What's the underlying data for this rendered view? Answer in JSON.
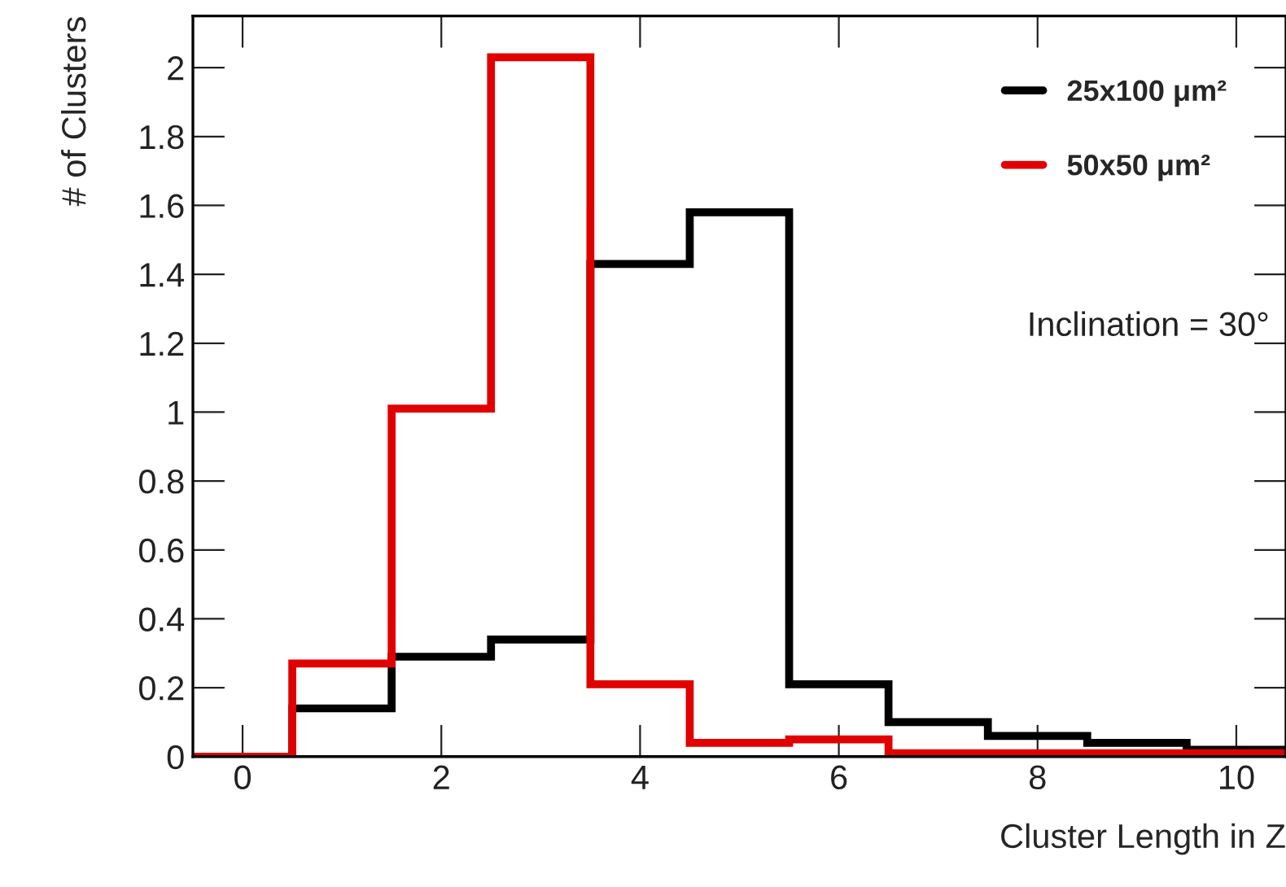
{
  "chart_data": {
    "type": "histogram",
    "xlabel": "Cluster Length in Z",
    "ylabel": "# of Clusters",
    "bins": [
      -0.5,
      0.5,
      1.5,
      2.5,
      3.5,
      4.5,
      5.5,
      6.5,
      7.5,
      8.5,
      9.5,
      10.5
    ],
    "series": [
      {
        "name": "25x100 μm²",
        "color": "#000000",
        "values": [
          0,
          0.14,
          0.29,
          0.34,
          1.43,
          1.58,
          0.21,
          0.1,
          0.06,
          0.04,
          0.02
        ]
      },
      {
        "name": "50x50 μm²",
        "color": "#e00000",
        "values": [
          0,
          0.27,
          1.01,
          2.03,
          0.21,
          0.04,
          0.05,
          0.01,
          0.01,
          0.01,
          0.01
        ]
      }
    ],
    "xlim": [
      -0.5,
      10.5
    ],
    "xticks": [
      0,
      2,
      4,
      6,
      8,
      10
    ],
    "ylim": [
      0,
      2.15
    ],
    "yticks": [
      0,
      0.2,
      0.4,
      0.6,
      0.8,
      1,
      1.2,
      1.4,
      1.6,
      1.8,
      2
    ],
    "annotations": [
      "Inclination = 30°"
    ],
    "legend": "top right",
    "grid": false
  }
}
